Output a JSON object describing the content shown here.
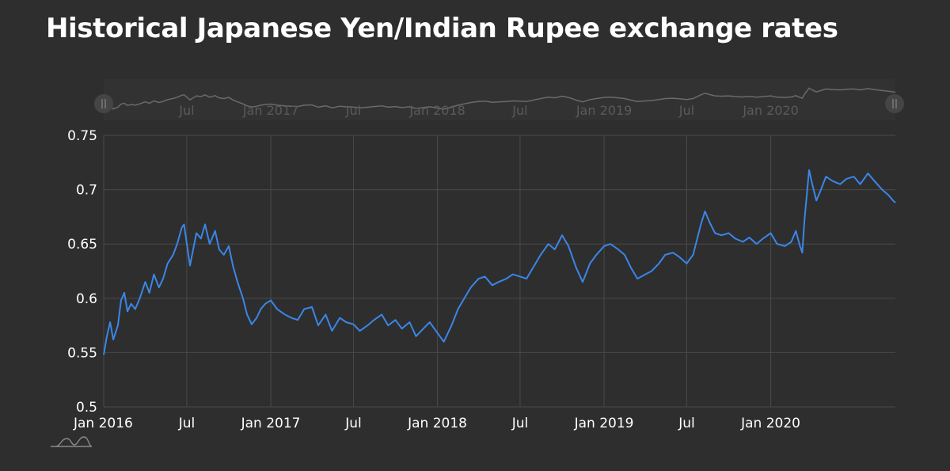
{
  "title": "Historical Japanese Yen/Indian Rupee exchange rates",
  "colors": {
    "background": "#2e2e2e",
    "line": "#3a86e8",
    "grid": "#4a4a4a",
    "text": "#ffffff",
    "navigator_line": "#6a6a6a",
    "navigator_text": "#5a5a5a"
  },
  "navigator": {
    "labels": [
      "Jul",
      "Jan 2017",
      "Jul",
      "Jan 2018",
      "Jul",
      "Jan 2019",
      "Jul",
      "Jan 2020"
    ],
    "left_handle_icon": "pause-handle-icon",
    "right_handle_icon": "pause-handle-icon"
  },
  "logo": {
    "icon": "mountain-logo-icon"
  },
  "chart_data": {
    "type": "line",
    "title": "Historical Japanese Yen/Indian Rupee exchange rates",
    "xlabel": "",
    "ylabel": "",
    "ylim": [
      0.5,
      0.75
    ],
    "y_ticks": [
      "0.75",
      "0.7",
      "0.65",
      "0.6",
      "0.55",
      "0.5"
    ],
    "x_ticks": [
      "Jan 2016",
      "Jul",
      "Jan 2017",
      "Jul",
      "Jan 2018",
      "Jul",
      "Jan 2019",
      "Jul",
      "Jan 2020"
    ],
    "x_range": [
      "2016-01-01",
      "2020-09-30"
    ],
    "grid": true,
    "series": [
      {
        "x": [
          "2016-01-01",
          "2016-01-08",
          "2016-01-15",
          "2016-01-22",
          "2016-02-01",
          "2016-02-08",
          "2016-02-15",
          "2016-02-22",
          "2016-03-01",
          "2016-03-10",
          "2016-03-20",
          "2016-04-01",
          "2016-04-10",
          "2016-04-20",
          "2016-05-01",
          "2016-05-10",
          "2016-05-20",
          "2016-06-01",
          "2016-06-10",
          "2016-06-20",
          "2016-06-25",
          "2016-07-01",
          "2016-07-08",
          "2016-07-15",
          "2016-07-22",
          "2016-08-01",
          "2016-08-10",
          "2016-08-20",
          "2016-09-01",
          "2016-09-10",
          "2016-09-20",
          "2016-10-01",
          "2016-10-10",
          "2016-10-20",
          "2016-11-01",
          "2016-11-10",
          "2016-11-20",
          "2016-12-01",
          "2016-12-10",
          "2016-12-20",
          "2017-01-01",
          "2017-01-15",
          "2017-02-01",
          "2017-02-15",
          "2017-03-01",
          "2017-03-15",
          "2017-04-01",
          "2017-04-15",
          "2017-05-01",
          "2017-05-15",
          "2017-06-01",
          "2017-06-15",
          "2017-07-01",
          "2017-07-15",
          "2017-08-01",
          "2017-08-15",
          "2017-09-01",
          "2017-09-15",
          "2017-10-01",
          "2017-10-15",
          "2017-11-01",
          "2017-11-15",
          "2017-12-01",
          "2017-12-15",
          "2018-01-01",
          "2018-01-15",
          "2018-02-01",
          "2018-02-15",
          "2018-03-01",
          "2018-03-15",
          "2018-04-01",
          "2018-04-15",
          "2018-05-01",
          "2018-05-15",
          "2018-06-01",
          "2018-06-15",
          "2018-07-01",
          "2018-07-15",
          "2018-08-01",
          "2018-08-15",
          "2018-09-01",
          "2018-09-15",
          "2018-10-01",
          "2018-10-15",
          "2018-11-01",
          "2018-11-15",
          "2018-12-01",
          "2018-12-15",
          "2019-01-01",
          "2019-01-15",
          "2019-02-01",
          "2019-02-15",
          "2019-03-01",
          "2019-03-15",
          "2019-04-01",
          "2019-04-15",
          "2019-05-01",
          "2019-05-15",
          "2019-06-01",
          "2019-06-15",
          "2019-07-01",
          "2019-07-15",
          "2019-08-01",
          "2019-08-10",
          "2019-08-20",
          "2019-09-01",
          "2019-09-15",
          "2019-10-01",
          "2019-10-15",
          "2019-11-01",
          "2019-11-15",
          "2019-12-01",
          "2019-12-15",
          "2020-01-01",
          "2020-01-15",
          "2020-02-01",
          "2020-02-15",
          "2020-02-25",
          "2020-03-05",
          "2020-03-10",
          "2020-03-15",
          "2020-03-20",
          "2020-03-25",
          "2020-04-01",
          "2020-04-10",
          "2020-04-20",
          "2020-05-01",
          "2020-05-15",
          "2020-06-01",
          "2020-06-15",
          "2020-07-01",
          "2020-07-15",
          "2020-08-01",
          "2020-08-15",
          "2020-09-01",
          "2020-09-15",
          "2020-09-25",
          "2020-09-30"
        ],
        "y": [
          0.548,
          0.565,
          0.578,
          0.562,
          0.575,
          0.598,
          0.605,
          0.588,
          0.595,
          0.59,
          0.6,
          0.615,
          0.605,
          0.622,
          0.61,
          0.618,
          0.632,
          0.64,
          0.65,
          0.665,
          0.668,
          0.65,
          0.63,
          0.645,
          0.66,
          0.655,
          0.668,
          0.65,
          0.662,
          0.645,
          0.64,
          0.648,
          0.63,
          0.615,
          0.6,
          0.585,
          0.576,
          0.582,
          0.59,
          0.595,
          0.598,
          0.59,
          0.585,
          0.582,
          0.58,
          0.59,
          0.592,
          0.575,
          0.585,
          0.57,
          0.582,
          0.578,
          0.576,
          0.57,
          0.575,
          0.58,
          0.585,
          0.575,
          0.58,
          0.572,
          0.578,
          0.565,
          0.572,
          0.578,
          0.568,
          0.56,
          0.575,
          0.59,
          0.6,
          0.61,
          0.618,
          0.62,
          0.612,
          0.615,
          0.618,
          0.622,
          0.62,
          0.618,
          0.63,
          0.64,
          0.65,
          0.645,
          0.658,
          0.648,
          0.628,
          0.615,
          0.632,
          0.64,
          0.648,
          0.65,
          0.645,
          0.64,
          0.628,
          0.618,
          0.622,
          0.625,
          0.632,
          0.64,
          0.642,
          0.638,
          0.632,
          0.64,
          0.668,
          0.68,
          0.67,
          0.66,
          0.658,
          0.66,
          0.655,
          0.652,
          0.656,
          0.65,
          0.655,
          0.66,
          0.65,
          0.648,
          0.652,
          0.662,
          0.648,
          0.642,
          0.672,
          0.695,
          0.718,
          0.705,
          0.69,
          0.7,
          0.712,
          0.708,
          0.705,
          0.71,
          0.712,
          0.705,
          0.715,
          0.708,
          0.7,
          0.695,
          0.69,
          0.688
        ]
      }
    ]
  }
}
